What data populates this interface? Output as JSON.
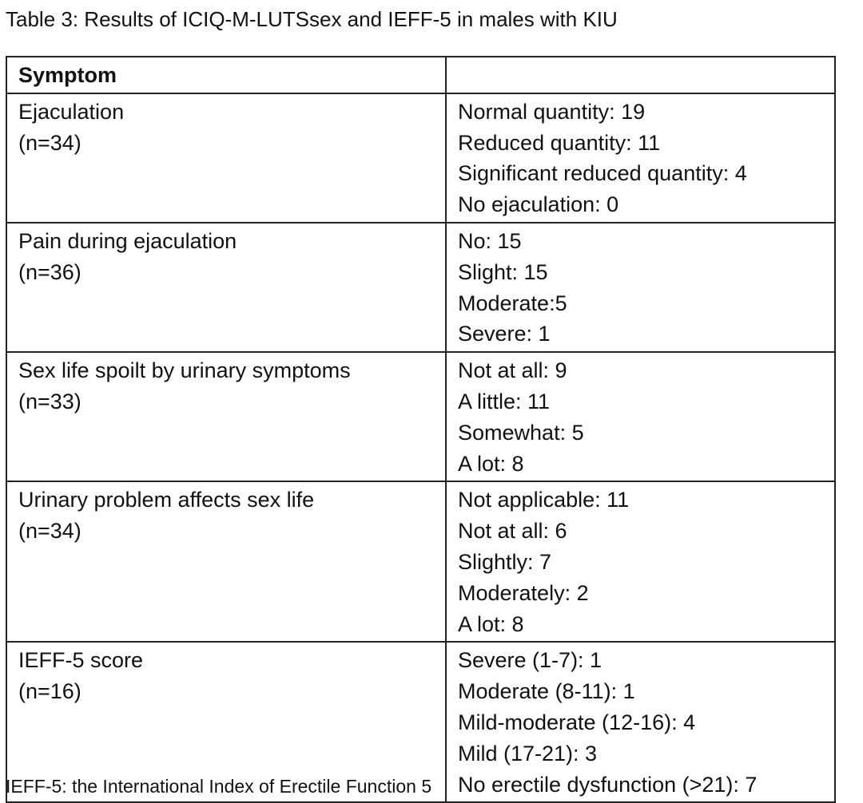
{
  "caption": "Table 3: Results of ICIQ-M-LUTSsex and IEFF-5 in males with KIU",
  "header": {
    "col1": "Symptom",
    "col2": ""
  },
  "rows": [
    {
      "symptom": "Ejaculation",
      "n": "(n=34)",
      "results": [
        "Normal quantity: 19",
        "Reduced quantity: 11",
        "Significant reduced quantity: 4",
        "No ejaculation: 0"
      ]
    },
    {
      "symptom": "Pain during ejaculation",
      "n": "(n=36)",
      "results": [
        "No: 15",
        "Slight: 15",
        "Moderate:5",
        "Severe: 1"
      ]
    },
    {
      "symptom": "Sex life spoilt by urinary symptoms",
      "n": "(n=33)",
      "results": [
        "Not at all: 9",
        "A little: 11",
        "Somewhat: 5",
        "A lot: 8"
      ]
    },
    {
      "symptom": "Urinary problem affects sex life",
      "n": "(n=34)",
      "results": [
        "Not applicable: 11",
        "Not at all: 6",
        "Slightly: 7",
        "Moderately: 2",
        "A lot: 8"
      ]
    },
    {
      "symptom": "IEFF-5 score",
      "n": "(n=16)",
      "results": [
        "Severe (1-7): 1",
        "Moderate (8-11): 1",
        "Mild-moderate (12-16): 4",
        "Mild (17-21): 3",
        "No erectile dysfunction (>21): 7"
      ]
    }
  ],
  "footnote": "IEFF-5: the International Index of Erectile Function 5"
}
